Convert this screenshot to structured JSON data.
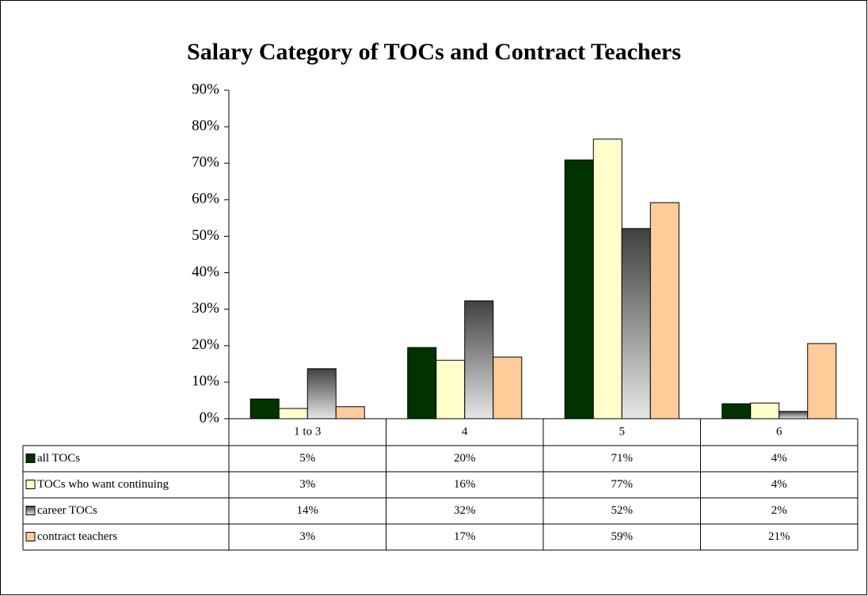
{
  "chart_data": {
    "type": "bar",
    "title": "Salary Category of TOCs and Contract Teachers",
    "categories": [
      "1 to 3",
      "4",
      "5",
      "6"
    ],
    "series": [
      {
        "name": "all TOCs",
        "color": "#003300",
        "values": [
          5.4,
          19.5,
          70.9,
          4.1
        ],
        "value_labels": [
          "5%",
          "20%",
          "71%",
          "4%"
        ]
      },
      {
        "name": "TOCs who want continuing",
        "color": "#ffffcc",
        "values": [
          2.8,
          16.0,
          76.6,
          4.3
        ],
        "value_labels": [
          "3%",
          "16%",
          "77%",
          "4%"
        ]
      },
      {
        "name": "career TOCs",
        "color": "#404040",
        "fill_style": "gradient",
        "values": [
          13.7,
          32.3,
          52.1,
          2.0
        ],
        "value_labels": [
          "14%",
          "32%",
          "52%",
          "2%"
        ]
      },
      {
        "name": "contract teachers",
        "color": "#ffcc99",
        "values": [
          3.3,
          16.9,
          59.2,
          20.6
        ],
        "value_labels": [
          "3%",
          "17%",
          "59%",
          "21%"
        ]
      }
    ],
    "ylim": [
      0,
      90
    ],
    "yticks": [
      {
        "value": 0,
        "label": "0%"
      },
      {
        "value": 10,
        "label": "10%"
      },
      {
        "value": 20,
        "label": "20%"
      },
      {
        "value": 30,
        "label": "30%"
      },
      {
        "value": 40,
        "label": "40%"
      },
      {
        "value": 50,
        "label": "50%"
      },
      {
        "value": 60,
        "label": "60%"
      },
      {
        "value": 70,
        "label": "70%"
      },
      {
        "value": 80,
        "label": "80%"
      },
      {
        "value": 90,
        "label": "90%"
      }
    ],
    "grid": false,
    "legend": "data-table"
  }
}
